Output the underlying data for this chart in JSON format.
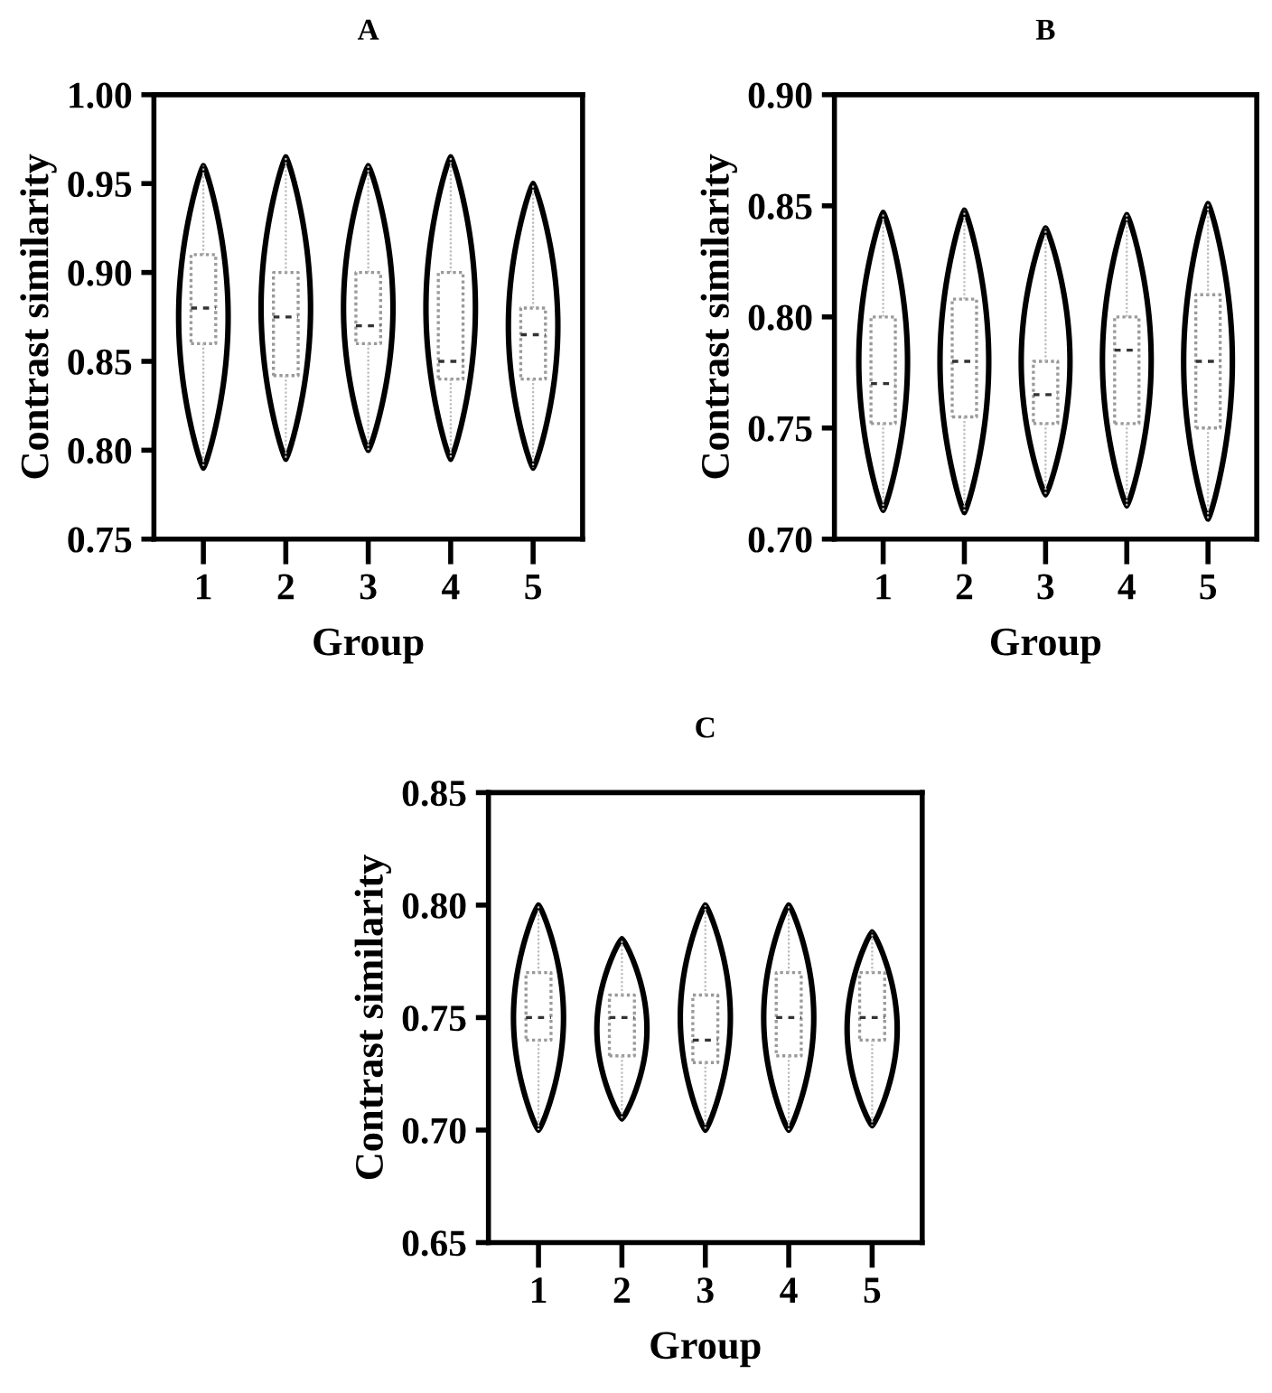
{
  "chart_data": [
    {
      "type": "box",
      "title": "A",
      "xlabel": "Group",
      "ylabel": "Contrast similarity",
      "categories": [
        "1",
        "2",
        "3",
        "4",
        "5"
      ],
      "boxes": [
        {
          "low": 0.79,
          "q1": 0.86,
          "median": 0.88,
          "q3": 0.91,
          "high": 0.96
        },
        {
          "low": 0.795,
          "q1": 0.842,
          "median": 0.875,
          "q3": 0.9,
          "high": 0.965
        },
        {
          "low": 0.8,
          "q1": 0.86,
          "median": 0.87,
          "q3": 0.9,
          "high": 0.96
        },
        {
          "low": 0.795,
          "q1": 0.84,
          "median": 0.85,
          "q3": 0.9,
          "high": 0.965
        },
        {
          "low": 0.79,
          "q1": 0.84,
          "median": 0.865,
          "q3": 0.88,
          "high": 0.95
        }
      ],
      "ylim": [
        0.75,
        1.0
      ],
      "yticks": [
        {
          "value": 0.75,
          "label": "0.75"
        },
        {
          "value": 0.8,
          "label": "0.80"
        },
        {
          "value": 0.85,
          "label": "0.85"
        },
        {
          "value": 0.9,
          "label": "0.90"
        },
        {
          "value": 0.95,
          "label": "0.95"
        },
        {
          "value": 1.0,
          "label": "1.00"
        }
      ],
      "grid": false
    },
    {
      "type": "box",
      "title": "B",
      "xlabel": "Group",
      "ylabel": "Contrast similarity",
      "categories": [
        "1",
        "2",
        "3",
        "4",
        "5"
      ],
      "boxes": [
        {
          "low": 0.713,
          "q1": 0.752,
          "median": 0.77,
          "q3": 0.8,
          "high": 0.847
        },
        {
          "low": 0.712,
          "q1": 0.755,
          "median": 0.78,
          "q3": 0.808,
          "high": 0.848
        },
        {
          "low": 0.72,
          "q1": 0.752,
          "median": 0.765,
          "q3": 0.78,
          "high": 0.84
        },
        {
          "low": 0.715,
          "q1": 0.752,
          "median": 0.785,
          "q3": 0.8,
          "high": 0.846
        },
        {
          "low": 0.709,
          "q1": 0.75,
          "median": 0.78,
          "q3": 0.81,
          "high": 0.851
        }
      ],
      "ylim": [
        0.7,
        0.9
      ],
      "yticks": [
        {
          "value": 0.7,
          "label": "0.70"
        },
        {
          "value": 0.75,
          "label": "0.75"
        },
        {
          "value": 0.8,
          "label": "0.80"
        },
        {
          "value": 0.85,
          "label": "0.85"
        },
        {
          "value": 0.9,
          "label": "0.90"
        }
      ],
      "grid": false
    },
    {
      "type": "box",
      "title": "C",
      "xlabel": "Group",
      "ylabel": "Contrast similarity",
      "categories": [
        "1",
        "2",
        "3",
        "4",
        "5"
      ],
      "boxes": [
        {
          "low": 0.7,
          "q1": 0.74,
          "median": 0.75,
          "q3": 0.77,
          "high": 0.8
        },
        {
          "low": 0.705,
          "q1": 0.733,
          "median": 0.75,
          "q3": 0.76,
          "high": 0.785
        },
        {
          "low": 0.7,
          "q1": 0.73,
          "median": 0.74,
          "q3": 0.76,
          "high": 0.8
        },
        {
          "low": 0.7,
          "q1": 0.733,
          "median": 0.75,
          "q3": 0.77,
          "high": 0.8
        },
        {
          "low": 0.702,
          "q1": 0.74,
          "median": 0.75,
          "q3": 0.77,
          "high": 0.788
        }
      ],
      "ylim": [
        0.65,
        0.85
      ],
      "yticks": [
        {
          "value": 0.65,
          "label": "0.65"
        },
        {
          "value": 0.7,
          "label": "0.70"
        },
        {
          "value": 0.75,
          "label": "0.75"
        },
        {
          "value": 0.8,
          "label": "0.80"
        },
        {
          "value": 0.85,
          "label": "0.85"
        }
      ],
      "grid": false
    }
  ]
}
